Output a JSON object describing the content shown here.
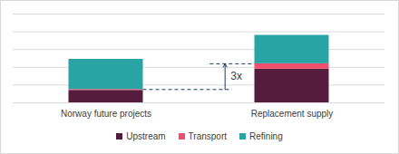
{
  "chart_data": {
    "type": "bar",
    "stacked": true,
    "categories": [
      "Norway future projects",
      "Replacement supply"
    ],
    "series": [
      {
        "name": "Upstream",
        "color": "#561c3e",
        "values": [
          0.7,
          1.9
        ]
      },
      {
        "name": "Transport",
        "color": "#ef4f6a",
        "values": [
          0.05,
          0.3
        ]
      },
      {
        "name": "Refining",
        "color": "#2aa3a5",
        "values": [
          1.7,
          1.6
        ]
      }
    ],
    "annotations": [
      "3x"
    ],
    "ylim": [
      0,
      5
    ],
    "yticks": [
      0,
      1,
      2,
      3,
      4,
      5
    ],
    "grid": true,
    "tick_labels": "x",
    "legend": "bottom"
  }
}
